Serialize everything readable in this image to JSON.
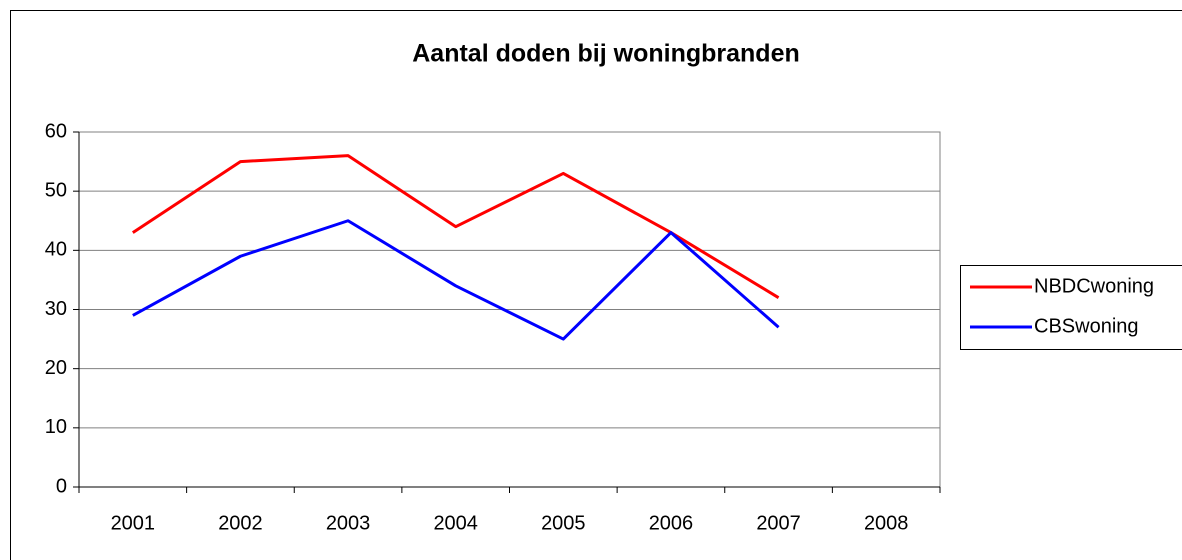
{
  "chart_data": {
    "type": "line",
    "title": "Aantal doden bij woningbranden",
    "categories": [
      "2001",
      "2002",
      "2003",
      "2004",
      "2005",
      "2006",
      "2007",
      "2008"
    ],
    "series": [
      {
        "name": "NBDCwoning",
        "color": "#ff0000",
        "values": [
          43,
          55,
          56,
          44,
          53,
          43,
          32,
          null
        ]
      },
      {
        "name": "CBSwoning",
        "color": "#0000ff",
        "values": [
          29,
          39,
          45,
          34,
          25,
          43,
          27,
          null
        ]
      }
    ],
    "ylim": [
      0,
      60
    ],
    "yticks": [
      0,
      10,
      20,
      30,
      40,
      50,
      60
    ],
    "grid": true,
    "legend": "right"
  }
}
